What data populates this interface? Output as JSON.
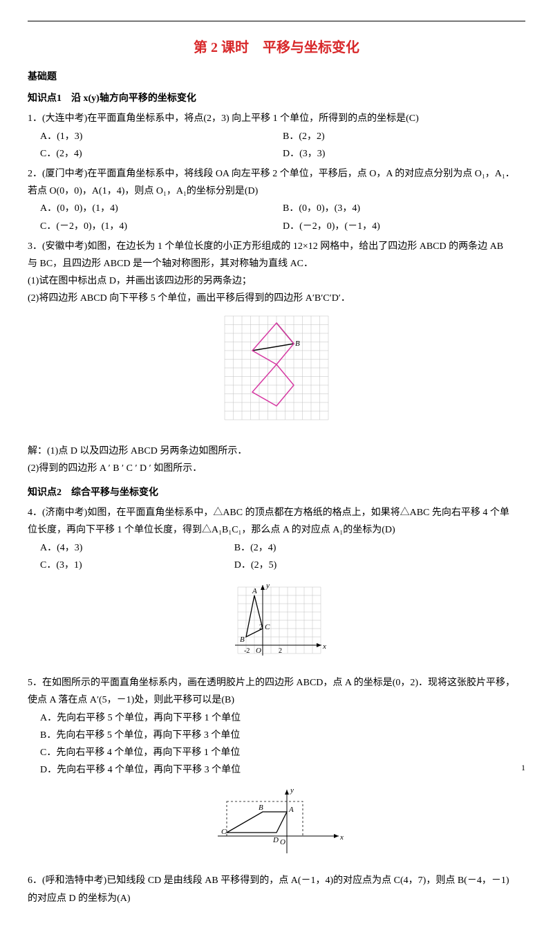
{
  "title": "第 2 课时　平移与坐标变化",
  "headers": {
    "basic": "基础题",
    "kp1": "知识点1　沿 x(y)轴方向平移的坐标变化",
    "kp2": "知识点2　综合平移与坐标变化"
  },
  "q1": {
    "stem": "1．(大连中考)在平面直角坐标系中，将点(2，3) 向上平移 1 个单位，所得到的点的坐标是(C)",
    "a": "A．(1，3)",
    "b": "B．(2，2)",
    "c": "C．(2，4)",
    "d": "D．(3，3)"
  },
  "q2": {
    "stem1": "2．(厦门中考)在平面直角坐标系中，将线段 OA 向左平移 2 个单位，平移后，点 O，A 的对应点分别为点 O₁，A₁．",
    "stem2": "若点 O(0，0)，A(1，4)，则点 O₁，A₁的坐标分别是(D)",
    "a": "A．(0，0)，(1，4)",
    "b": "B．(0，0)，(3，4)",
    "c": "C．(－2，0)，(1，4)",
    "d": "D．(－2，0)，(－1，4)"
  },
  "q3": {
    "stem1": "3．(安徽中考)如图，在边长为 1 个单位长度的小正方形组成的 12×12 网格中，给出了四边形 ABCD 的两条边 AB",
    "stem2": "与 BC，且四边形 ABCD 是一个轴对称图形，其对称轴为直线 AC．",
    "p1": "(1)试在图中标出点 D，并画出该四边形的另两条边；",
    "p2": "(2)将四边形 ABCD 向下平移 5 个单位，画出平移后得到的四边形 A′B′C′D′．",
    "sol1": "解：(1)点 D 以及四边形 ABCD 另两条边如图所示．",
    "sol2": "(2)得到的四边形 A ′ B ′ C ′ D ′ 如图所示．"
  },
  "q4": {
    "stem1": "4．(济南中考)如图，在平面直角坐标系中，△ABC 的顶点都在方格纸的格点上，如果将△ABC 先向右平移 4 个单",
    "stem2": "位长度，再向下平移 1 个单位长度，得到△A₁B₁C₁，那么点 A 的对应点 A₁的坐标为(D)",
    "a": "A．(4，3)",
    "b": "B．(2，4)",
    "c": "C．(3，1)",
    "d": "D．(2，5)"
  },
  "q5": {
    "stem1": "5．在如图所示的平面直角坐标系内，画在透明胶片上的四边形 ABCD，点 A 的坐标是(0，2)．现将这张胶片平移，",
    "stem2": "使点 A 落在点 A′(5，－1)处，则此平移可以是(B)",
    "a": "A．先向右平移 5 个单位，再向下平移 1 个单位",
    "b": "B．先向右平移 5 个单位，再向下平移 3 个单位",
    "c": "C．先向右平移 4 个单位，再向下平移 1 个单位",
    "d": "D．先向右平移 4 个单位，再向下平移 3 个单位"
  },
  "q6": {
    "stem1": "6．(呼和浩特中考)已知线段 CD 是由线段 AB 平移得到的，点 A(－1，4)的对应点为点 C(4，7)，则点 B(－4，－1)",
    "stem2": "的对应点 D 的坐标为(A)"
  },
  "pageNum": "1",
  "colors": {
    "title": "#d8282a",
    "grid": "#bfbfbf",
    "magenta": "#d63aa3",
    "axis": "#333"
  }
}
